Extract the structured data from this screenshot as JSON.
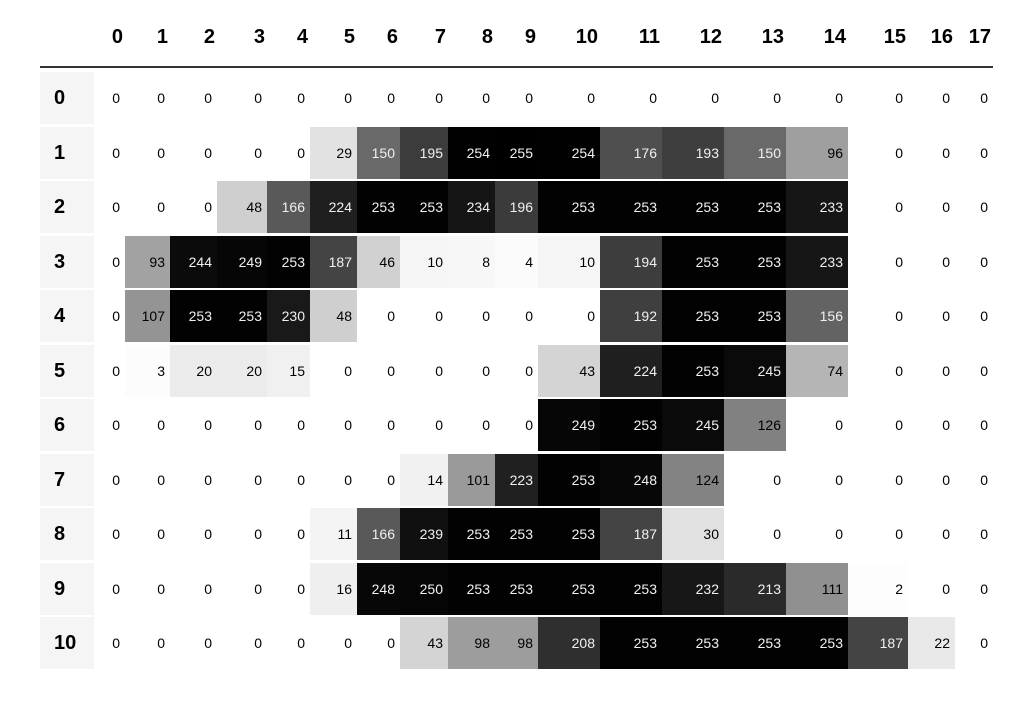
{
  "chart_data": {
    "type": "heatmap",
    "title": "",
    "xlabel": "",
    "ylabel": "",
    "colormap": "greys",
    "vmin": 0,
    "vmax": 255,
    "columns": [
      "0",
      "1",
      "2",
      "3",
      "4",
      "5",
      "6",
      "7",
      "8",
      "9",
      "10",
      "11",
      "12",
      "13",
      "14",
      "15",
      "16",
      "17"
    ],
    "rows": [
      "0",
      "1",
      "2",
      "3",
      "4",
      "5",
      "6",
      "7",
      "8",
      "9",
      "10"
    ],
    "values": [
      [
        0,
        0,
        0,
        0,
        0,
        0,
        0,
        0,
        0,
        0,
        0,
        0,
        0,
        0,
        0,
        0,
        0,
        0
      ],
      [
        0,
        0,
        0,
        0,
        0,
        29,
        150,
        195,
        254,
        255,
        254,
        176,
        193,
        150,
        96,
        0,
        0,
        0
      ],
      [
        0,
        0,
        0,
        48,
        166,
        224,
        253,
        253,
        234,
        196,
        253,
        253,
        253,
        253,
        233,
        0,
        0,
        0
      ],
      [
        0,
        93,
        244,
        249,
        253,
        187,
        46,
        10,
        8,
        4,
        10,
        194,
        253,
        253,
        233,
        0,
        0,
        0
      ],
      [
        0,
        107,
        253,
        253,
        230,
        48,
        0,
        0,
        0,
        0,
        0,
        192,
        253,
        253,
        156,
        0,
        0,
        0
      ],
      [
        0,
        3,
        20,
        20,
        15,
        0,
        0,
        0,
        0,
        0,
        43,
        224,
        253,
        245,
        74,
        0,
        0,
        0
      ],
      [
        0,
        0,
        0,
        0,
        0,
        0,
        0,
        0,
        0,
        0,
        249,
        253,
        245,
        126,
        0,
        0,
        0,
        0
      ],
      [
        0,
        0,
        0,
        0,
        0,
        0,
        0,
        14,
        101,
        223,
        253,
        248,
        124,
        0,
        0,
        0,
        0,
        0
      ],
      [
        0,
        0,
        0,
        0,
        0,
        11,
        166,
        239,
        253,
        253,
        253,
        187,
        30,
        0,
        0,
        0,
        0,
        0
      ],
      [
        0,
        0,
        0,
        0,
        0,
        16,
        248,
        250,
        253,
        253,
        253,
        253,
        232,
        213,
        111,
        2,
        0,
        0
      ],
      [
        0,
        0,
        0,
        0,
        0,
        0,
        0,
        43,
        98,
        98,
        208,
        253,
        253,
        253,
        253,
        187,
        22,
        0
      ]
    ]
  }
}
